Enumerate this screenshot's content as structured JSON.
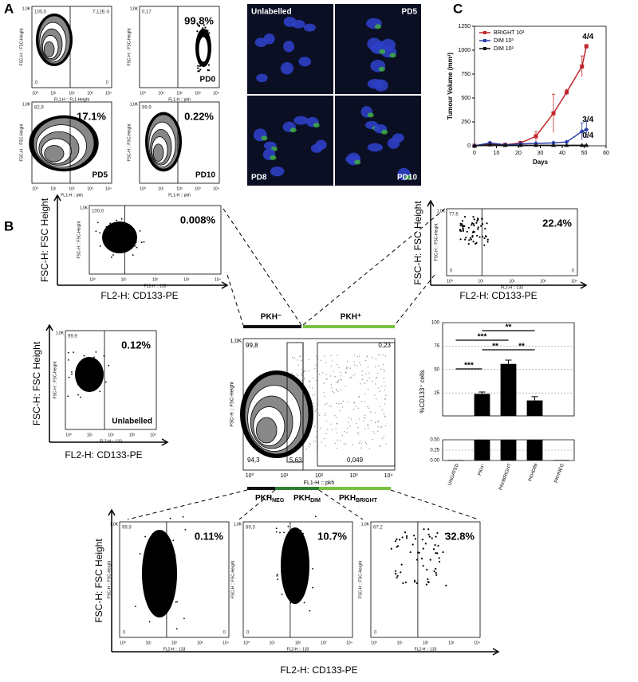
{
  "panel_labels": [
    "A",
    "B",
    "C"
  ],
  "log_ticks": [
    "10⁰",
    "10¹",
    "10²",
    "10³",
    "10⁴"
  ],
  "flow_axis": {
    "y_top": "1,0K",
    "zero": "0"
  },
  "panel_a": {
    "plots": [
      {
        "tl": "100,0",
        "tr": "7,12E-3",
        "bl": "0",
        "br": "0",
        "ylabel": "FSC-H :: FSC-Height",
        "xlabel": "FL1-H :: FL1-Height"
      },
      {
        "tl": "0,17",
        "pct": "99.8%",
        "tag": "PD0",
        "ylabel": "FSC-H :: FSC-Height",
        "xlabel": "FL1-H :: pkh"
      },
      {
        "tl": "82,9",
        "pct": "17.1%",
        "tag": "PD5",
        "ylabel": "FSC-H :: FSC-Height",
        "xlabel": "FL1-H :: pkh"
      },
      {
        "tl": "99,9",
        "pct": "0.22%",
        "tag": "PD10",
        "ylabel": "FSC-H :: FSC-Height",
        "xlabel": "FL1-H :: pkh"
      }
    ],
    "images": [
      "Unlabelled",
      "PD5",
      "PD8",
      "PD10"
    ]
  },
  "panel_b": {
    "axis_labels": {
      "y": "FSC-H: FSC Height",
      "x": "FL2-H: CD133-PE"
    },
    "top_left": {
      "tl": "100,0",
      "pct": "0.008%",
      "ylabel": "FSC-H :: FSC-Height",
      "xlabel": "FL2-H :: 133"
    },
    "top_right": {
      "tl": "77,6",
      "pct": "22.4%",
      "bl": "0",
      "br": "0",
      "ylabel": "FSC-H :: FSC-Height",
      "xlabel": "FL2-H :: 133"
    },
    "unlabelled": {
      "tl": "99,9",
      "pct": "0.12%",
      "tag": "Unlabelled",
      "ylabel": "FSC-H :: FSC-Height",
      "xlabel": "FL2-H :: 133"
    },
    "bottom": [
      {
        "tl": "99,9",
        "pct": "0.11%",
        "bl": "0",
        "br": "0",
        "ylabel": "FSC-H :: FSC-Height",
        "xlabel": "FL2-H :: 133"
      },
      {
        "tl": "89,3",
        "pct": "10.7%",
        "bl": "0",
        "ylabel": "FSC-H :: FSC-Height",
        "xlabel": "FL2-H :: 133"
      },
      {
        "tl": "67,2",
        "pct": "32.8%",
        "bl": "0",
        "ylabel": "FSC-H :: FSC-Height",
        "xlabel": "FL2-H :: 133"
      }
    ],
    "center": {
      "gates": [
        "99,8",
        "0,23",
        "94,3",
        "5,63",
        "0,049"
      ],
      "ylabel": "FSC-H :: FSC-Height",
      "xlabel": "FL1-H :: pkh",
      "top_bars": [
        "PKH⁻",
        "PKH⁺"
      ],
      "bottom_bars": [
        {
          "main": "PKH",
          "sub": "NEG"
        },
        {
          "main": "PKH",
          "sub": "DIM"
        },
        {
          "main": "PKH",
          "sub": "BRIGHT"
        }
      ]
    }
  },
  "chart_data": [
    {
      "type": "line",
      "x_label": "Days",
      "y_label": "Tumour Volume (mm³)",
      "x": [
        0,
        7,
        14,
        21,
        28,
        36,
        42,
        49,
        51
      ],
      "xlim": [
        0,
        60
      ],
      "xticks": [
        0,
        10,
        20,
        30,
        40,
        50,
        60
      ],
      "ylim": [
        0,
        1250
      ],
      "yticks": [
        0,
        250,
        500,
        750,
        1000,
        1250
      ],
      "legend": "upper left",
      "series": [
        {
          "name": "BRIGHT 10²",
          "color": "#c0282d",
          "marker": "square",
          "values": [
            0,
            20,
            10,
            30,
            100,
            340,
            560,
            830,
            1040
          ],
          "errors": [
            0,
            10,
            5,
            15,
            50,
            200,
            30,
            110,
            20
          ]
        },
        {
          "name": "DIM 10³",
          "color": "#2b3fa8",
          "marker": "diamond",
          "values": [
            0,
            30,
            10,
            20,
            25,
            30,
            40,
            150,
            170
          ],
          "errors": [
            0,
            10,
            5,
            5,
            5,
            10,
            10,
            90,
            90
          ]
        },
        {
          "name": "DIM 10²",
          "color": "#111111",
          "marker": "triangle",
          "values": [
            0,
            10,
            5,
            5,
            5,
            5,
            5,
            5,
            5
          ],
          "errors": [
            0,
            5,
            2,
            2,
            2,
            2,
            2,
            2,
            2
          ]
        }
      ],
      "annotations": [
        "4/4",
        "3/4",
        "0/4"
      ]
    },
    {
      "type": "bar",
      "y_label": "%CD133⁺ cells",
      "categories": [
        "UNGATED",
        "PKH⁺",
        "PKHBRIGHT",
        "PKHDIM",
        "PKHNEG"
      ],
      "values": [
        0.012,
        24,
        56,
        17,
        0.012
      ],
      "errors": [
        0.002,
        2,
        4,
        4,
        0.002
      ],
      "color": "#000000",
      "ylim": [
        0,
        100
      ],
      "axis_break": 0.5,
      "yticks": [
        {
          "value": 0,
          "label": "0.00"
        },
        {
          "value": 0.25,
          "label": "0.25"
        },
        {
          "value": 0.5,
          "label": "0.50"
        },
        25,
        50,
        75,
        100
      ],
      "grid": true,
      "annotations": [
        "**",
        "***",
        "**",
        "**",
        "***"
      ]
    }
  ]
}
